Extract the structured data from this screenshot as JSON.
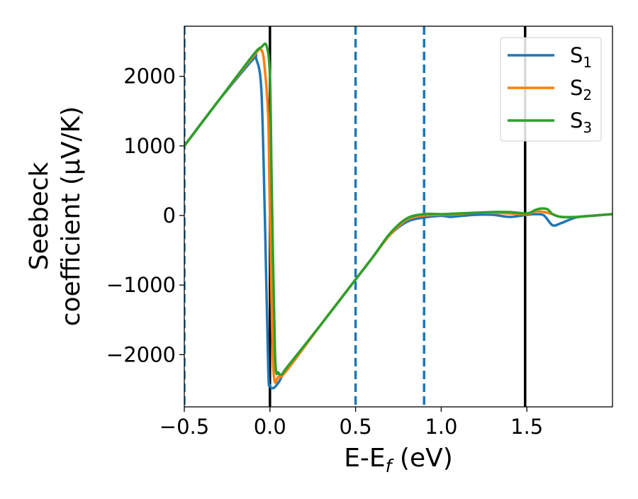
{
  "chart_data": {
    "type": "line",
    "title": "",
    "xlabel_main": "E-E",
    "xlabel_sub": "f",
    "xlabel_tail": " (eV)",
    "ylabel_line1": "Seebeck",
    "ylabel_line2": "coefficient  (μV/K)",
    "xlim": [
      -0.5,
      2.0
    ],
    "ylim": [
      -2750,
      2720
    ],
    "x_ticks": [
      -0.5,
      0.0,
      0.5,
      1.0,
      1.5
    ],
    "x_tick_labels": [
      "−0.5",
      "0.0",
      "0.5",
      "1.0",
      "1.5"
    ],
    "y_ticks": [
      2000,
      1000,
      0,
      -1000,
      -2000
    ],
    "y_tick_labels": [
      "2000",
      "1000",
      "0",
      "−1000",
      "−2000"
    ],
    "grid": false,
    "legend_position": "top-right",
    "vlines_solid": [
      0.0,
      1.49
    ],
    "vlines_dashed": [
      -0.5,
      0.5,
      0.9
    ],
    "vline_solid_color": "#000000",
    "vline_dashed_color": "#1f77b4",
    "series": [
      {
        "name": "S",
        "sub": "1",
        "color": "#1f77b4",
        "x": [
          -0.5,
          -0.3,
          -0.1,
          -0.08,
          -0.05,
          -0.03,
          -0.01,
          0.0,
          0.02,
          0.05,
          0.1,
          0.3,
          0.5,
          0.6,
          0.7,
          0.8,
          0.9,
          1.0,
          1.05,
          1.1,
          1.2,
          1.3,
          1.4,
          1.5,
          1.55,
          1.6,
          1.65,
          1.7,
          1.75,
          1.8,
          1.9,
          2.0
        ],
        "y": [
          1000,
          1650,
          2240,
          2250,
          1800,
          0,
          -2200,
          -2440,
          -2480,
          -2400,
          -2200,
          -1560,
          -920,
          -600,
          -280,
          -90,
          -30,
          -5,
          -20,
          -10,
          10,
          10,
          -20,
          10,
          20,
          0,
          -140,
          -110,
          -60,
          -20,
          0,
          20
        ]
      },
      {
        "name": "S",
        "sub": "2",
        "color": "#ff7f0e",
        "x": [
          -0.5,
          -0.3,
          -0.1,
          -0.05,
          -0.03,
          -0.01,
          0.0,
          0.02,
          0.05,
          0.1,
          0.3,
          0.5,
          0.6,
          0.7,
          0.8,
          0.9,
          1.0,
          1.1,
          1.2,
          1.3,
          1.4,
          1.5,
          1.55,
          1.6,
          1.65,
          1.7,
          1.8,
          1.9,
          2.0
        ],
        "y": [
          1000,
          1650,
          2280,
          2380,
          2100,
          1400,
          0,
          -2200,
          -2320,
          -2220,
          -1560,
          -920,
          -600,
          -280,
          -60,
          0,
          10,
          20,
          40,
          40,
          30,
          20,
          60,
          50,
          20,
          -20,
          -20,
          0,
          20
        ]
      },
      {
        "name": "S",
        "sub": "3",
        "color": "#2ca02c",
        "x": [
          -0.5,
          -0.3,
          -0.1,
          -0.05,
          -0.02,
          0.0,
          0.01,
          0.03,
          0.05,
          0.07,
          0.1,
          0.3,
          0.5,
          0.6,
          0.7,
          0.8,
          0.9,
          1.0,
          1.1,
          1.2,
          1.3,
          1.4,
          1.5,
          1.55,
          1.58,
          1.62,
          1.65,
          1.7,
          1.8,
          1.9,
          2.0
        ],
        "y": [
          1000,
          1650,
          2300,
          2420,
          2440,
          2000,
          500,
          -2000,
          -2260,
          -2280,
          -2180,
          -1560,
          -920,
          -600,
          -260,
          -40,
          20,
          20,
          30,
          40,
          50,
          50,
          30,
          80,
          100,
          90,
          20,
          -20,
          -20,
          0,
          20
        ]
      }
    ]
  }
}
